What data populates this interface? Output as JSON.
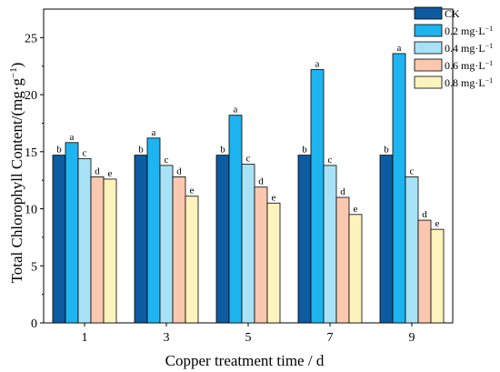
{
  "chart_data": {
    "type": "bar",
    "xlabel": "Copper treatment time / d",
    "ylabel": "Total Chlorophyll Content/(mg·g",
    "ylabel_sup": "−1",
    "ylabel_close": ")",
    "categories": [
      "1",
      "3",
      "5",
      "7",
      "9"
    ],
    "ylim": [
      0,
      27.5
    ],
    "yticks": [
      0,
      5,
      10,
      15,
      20,
      25
    ],
    "legend_position": "top-right",
    "series": [
      {
        "name": "CK",
        "unit_sup": "",
        "color": "#0d5ba1",
        "values": [
          14.7,
          14.7,
          14.7,
          14.7,
          14.7
        ],
        "labels": [
          "b",
          "b",
          "b",
          "b",
          "b"
        ]
      },
      {
        "name": "0.2 mg·L",
        "unit_sup": "−1",
        "color": "#1eb4f0",
        "values": [
          15.8,
          16.2,
          18.2,
          22.2,
          23.6
        ],
        "labels": [
          "a",
          "a",
          "a",
          "a",
          "a"
        ]
      },
      {
        "name": "0.4 mg·L",
        "unit_sup": "−1",
        "color": "#a8e2f7",
        "values": [
          14.4,
          13.8,
          13.9,
          13.8,
          12.8
        ],
        "labels": [
          "c",
          "c",
          "c",
          "c",
          "c"
        ]
      },
      {
        "name": "0.6 mg·L",
        "unit_sup": "−1",
        "color": "#f9c8ae",
        "values": [
          12.8,
          12.8,
          11.9,
          11.0,
          9.0
        ],
        "labels": [
          "d",
          "d",
          "d",
          "d",
          "d"
        ]
      },
      {
        "name": "0.8 mg·L",
        "unit_sup": "−1",
        "color": "#fdf3bd",
        "values": [
          12.6,
          11.1,
          10.5,
          9.5,
          8.2
        ],
        "labels": [
          "e",
          "e",
          "e",
          "e",
          "e"
        ]
      }
    ]
  }
}
